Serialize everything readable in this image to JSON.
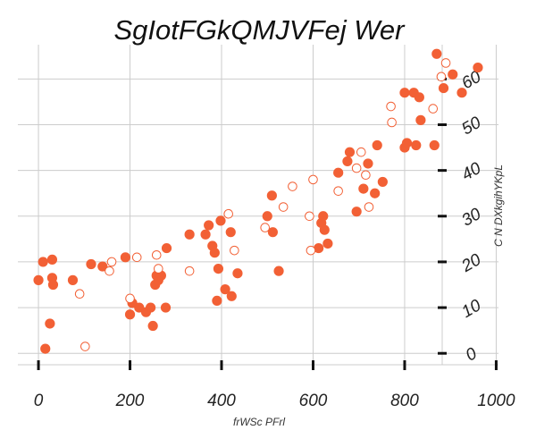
{
  "chart_data": {
    "type": "scatter",
    "title": "SgIotFGkQMJVFej Wer",
    "xlabel": "frWSc PFrl",
    "ylabel": "C N DXkgihYKpL",
    "xlim": [
      -45,
      1005
    ],
    "ylim": [
      -2.5,
      67.5
    ],
    "x_ticks": [
      0,
      200,
      400,
      600,
      800,
      1000
    ],
    "y_ticks": [
      0,
      10,
      20,
      30,
      40,
      50,
      60
    ],
    "grid": true,
    "y_axis_position": "right",
    "series": [
      {
        "marker": "filled-circle",
        "color": "#f26035",
        "points": [
          [
            0,
            16
          ],
          [
            10,
            20
          ],
          [
            15,
            1
          ],
          [
            25,
            6.5
          ],
          [
            30,
            16.5
          ],
          [
            30,
            20.5
          ],
          [
            32,
            15
          ],
          [
            75,
            16
          ],
          [
            115,
            19.5
          ],
          [
            140,
            19
          ],
          [
            190,
            21
          ],
          [
            200,
            8.5
          ],
          [
            205,
            11
          ],
          [
            220,
            10
          ],
          [
            235,
            9
          ],
          [
            245,
            10
          ],
          [
            250,
            6
          ],
          [
            255,
            15
          ],
          [
            258,
            17
          ],
          [
            262,
            16
          ],
          [
            268,
            17
          ],
          [
            278,
            10
          ],
          [
            280,
            23
          ],
          [
            330,
            26
          ],
          [
            365,
            26
          ],
          [
            372,
            28
          ],
          [
            380,
            23.5
          ],
          [
            385,
            22
          ],
          [
            390,
            11.5
          ],
          [
            393,
            18.5
          ],
          [
            398,
            29
          ],
          [
            408,
            14
          ],
          [
            420,
            26.5
          ],
          [
            422,
            12.5
          ],
          [
            435,
            17.5
          ],
          [
            500,
            30
          ],
          [
            510,
            34.5
          ],
          [
            512,
            26.5
          ],
          [
            525,
            18
          ],
          [
            612,
            23
          ],
          [
            618,
            28.5
          ],
          [
            622,
            30
          ],
          [
            625,
            27
          ],
          [
            632,
            24
          ],
          [
            655,
            39.5
          ],
          [
            675,
            42
          ],
          [
            680,
            44
          ],
          [
            695,
            31
          ],
          [
            710,
            36
          ],
          [
            720,
            41.5
          ],
          [
            735,
            35
          ],
          [
            740,
            45.5
          ],
          [
            752,
            37.5
          ],
          [
            800,
            45
          ],
          [
            805,
            46
          ],
          [
            800,
            57
          ],
          [
            820,
            57
          ],
          [
            825,
            45.5
          ],
          [
            832,
            56
          ],
          [
            835,
            51
          ],
          [
            865,
            45.5
          ],
          [
            870,
            65.5
          ],
          [
            885,
            58
          ],
          [
            905,
            61
          ],
          [
            925,
            57
          ],
          [
            960,
            62.5
          ]
        ]
      },
      {
        "marker": "open-circle",
        "color": "#f26035",
        "points": [
          [
            90,
            13
          ],
          [
            102,
            1.5
          ],
          [
            155,
            18
          ],
          [
            160,
            20
          ],
          [
            200,
            12
          ],
          [
            215,
            21
          ],
          [
            258,
            21.5
          ],
          [
            262,
            18.5
          ],
          [
            330,
            18
          ],
          [
            415,
            30.5
          ],
          [
            428,
            22.5
          ],
          [
            495,
            27.5
          ],
          [
            535,
            32
          ],
          [
            555,
            36.5
          ],
          [
            592,
            30
          ],
          [
            595,
            22.5
          ],
          [
            600,
            38
          ],
          [
            655,
            35.5
          ],
          [
            695,
            40.5
          ],
          [
            705,
            44
          ],
          [
            715,
            39
          ],
          [
            722,
            32
          ],
          [
            770,
            54
          ],
          [
            772,
            50.5
          ],
          [
            862,
            53.5
          ],
          [
            880,
            60.5
          ],
          [
            890,
            63.5
          ]
        ]
      }
    ]
  }
}
